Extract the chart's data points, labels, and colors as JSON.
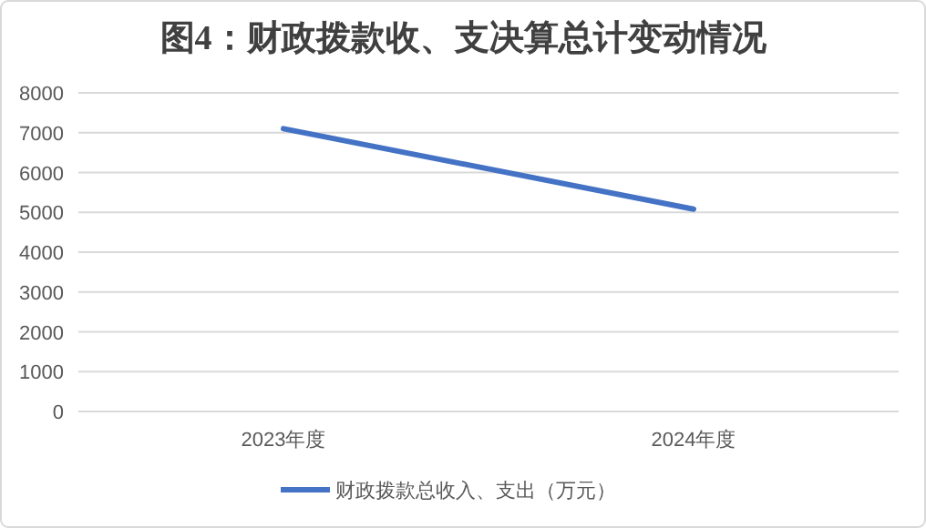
{
  "chart_data": {
    "type": "line",
    "title": "图4：财政拨款收、支决算总计变动情况",
    "categories": [
      "2023年度",
      "2024年度"
    ],
    "series": [
      {
        "name": "财政拨款总收入、支出（万元）",
        "color": "#4472c4",
        "values": [
          7100,
          5080
        ]
      }
    ],
    "ylim": [
      0,
      8000
    ],
    "yticks": [
      0,
      1000,
      2000,
      3000,
      4000,
      5000,
      6000,
      7000,
      8000
    ],
    "grid": "y",
    "legend": "bottom",
    "marker": "none",
    "line_style": "solid"
  }
}
